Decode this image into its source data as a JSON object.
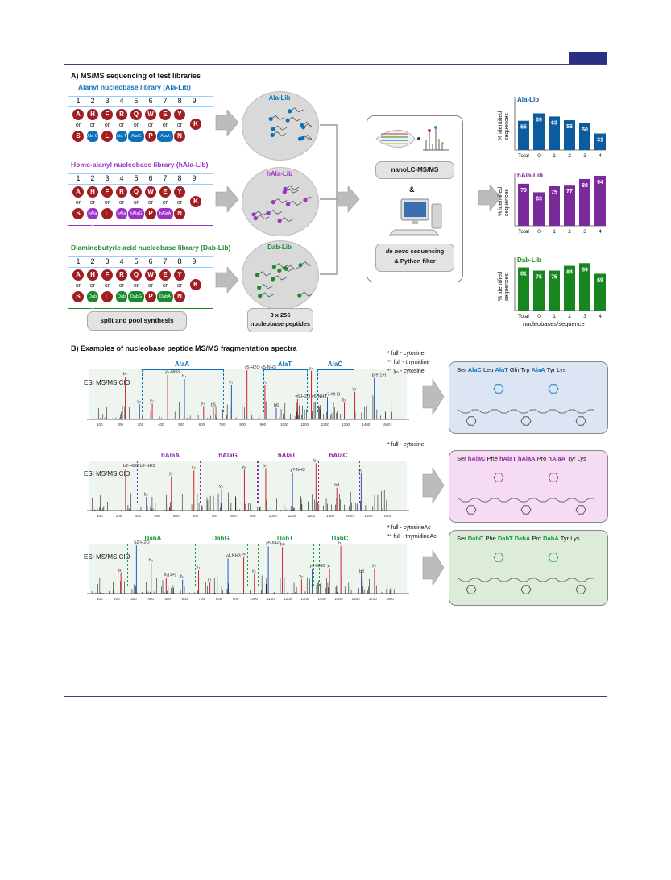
{
  "sectionA": {
    "title": "A) MS/MS sequencing of test libraries"
  },
  "sectionB": {
    "title": "B) Examples of nucleobase peptide MS/MS fragmentation spectra"
  },
  "libs": [
    {
      "title": "Alanyl nucleobase library (Ala-Lib)",
      "circle_label": "Ala-Lib",
      "color": "#0b72b9",
      "nb": [
        "Ala C",
        "Ala T",
        "AlaG",
        "AlaA"
      ]
    },
    {
      "title": "Homo-alanyl nucleobase library (hAla-Lib)",
      "circle_label": "hAla-Lib",
      "color": "#9a33c4",
      "nb": [
        "hAla C",
        "hAla T",
        "hAlaG",
        "hAlaA"
      ]
    },
    {
      "title": "Diaminobutyric acid nucleobase library (Dab-Lib)",
      "circle_label": "Dab-Lib",
      "color": "#1b8a2e",
      "nb": [
        "Dab C",
        "Dab T",
        "DabG",
        "DabA"
      ]
    }
  ],
  "positions": [
    "1",
    "2",
    "3",
    "4",
    "5",
    "6",
    "7",
    "8",
    "9"
  ],
  "or_label": "or",
  "row1_aa": [
    "A",
    "H",
    "F",
    "R",
    "Q",
    "W",
    "E",
    "Y",
    "K"
  ],
  "row2_aa": [
    "S",
    "L",
    "P",
    "N"
  ],
  "split_pool": "split and pool synthesis",
  "peptides_box": "3 x 256\nnucleobase peptides",
  "nanolc": "nanoLC-MS/MS",
  "amp": "&",
  "denovo": {
    "em": "de novo",
    "rest": " sequencing",
    "line2": "& Python filter"
  },
  "bar_ylabel": [
    "% identified",
    "sequences"
  ],
  "bar_xlabel": "nucleobases/sequence",
  "chart_data": [
    {
      "type": "bar",
      "title": "Ala-Lib",
      "categories": [
        "Total",
        "0",
        "1",
        "2",
        "3",
        "4"
      ],
      "values": [
        55,
        69,
        63,
        56,
        50,
        31
      ],
      "color": "#0c5b9e"
    },
    {
      "type": "bar",
      "title": "hAla-Lib",
      "categories": [
        "Total",
        "0",
        "1",
        "2",
        "3",
        "4"
      ],
      "values": [
        79,
        63,
        75,
        77,
        88,
        94
      ],
      "color": "#7b2a99"
    },
    {
      "type": "bar",
      "title": "Dab-Lib",
      "categories": [
        "Total",
        "0",
        "1",
        "2",
        "3",
        "4"
      ],
      "values": [
        81,
        75,
        75,
        84,
        89,
        69
      ],
      "color": "#17861f"
    }
  ],
  "spectra": [
    {
      "label": "ESI MS/MS CID",
      "brackets": [
        "AlaA",
        "AlaT",
        "AlaC"
      ],
      "notes": [
        "* full - cytosine",
        "** full - thymidine",
        "*° y₆ - cytosine"
      ],
      "peaks": [
        "b₂",
        "y₂",
        "y₃",
        "y₃-NH3",
        "b₄",
        "y₄",
        "b5",
        "y₅",
        "y5-H2O\ny5-NH3",
        "y₆",
        "b6",
        "y6-H2O\ny6-NH3",
        "y₇",
        "y7-NH3",
        "b₇",
        "y₈",
        "pre(1+)"
      ],
      "ticks": [
        "100",
        "200",
        "300",
        "400",
        "500",
        "600",
        "700",
        "800",
        "900",
        "1000",
        "1100",
        "1200",
        "1300",
        "1400",
        "1500"
      ],
      "seq": [
        [
          "Ser ",
          ""
        ],
        [
          "AlaC",
          "c"
        ],
        [
          " Leu ",
          ""
        ],
        [
          "AlaT",
          "c"
        ],
        [
          " Gln Trp ",
          ""
        ],
        [
          "AlaA",
          "c"
        ],
        [
          " Tyr Lys",
          ""
        ]
      ]
    },
    {
      "label": "ESI MS/MS CID",
      "brackets": [
        "hAlaA",
        "hAlaG",
        "hAlaT",
        "hAlaC"
      ],
      "notes": [
        "* full - cytosine"
      ],
      "peaks": [
        "b2-H2O\nb2-NH3",
        "b₂",
        "y₂",
        "y₄",
        "y₅",
        "y₆",
        "y₇",
        "y7-NH3",
        "b₇",
        "b8",
        "y₈"
      ],
      "ticks": [
        "100",
        "200",
        "300",
        "400",
        "500",
        "600",
        "700",
        "800",
        "900",
        "1000",
        "1100",
        "1200",
        "1300",
        "1400",
        "1500",
        "1600"
      ],
      "seq": [
        [
          "Ser ",
          ""
        ],
        [
          "hAlaC",
          "c"
        ],
        [
          " Phe ",
          ""
        ],
        [
          "hAlaT",
          "c"
        ],
        [
          " ",
          ""
        ],
        [
          "hAlaA",
          "c"
        ],
        [
          " Pro ",
          ""
        ],
        [
          "hAlaA",
          "c"
        ],
        [
          " Tyr Lys",
          ""
        ]
      ]
    },
    {
      "label": "ESI MS/MS CID",
      "brackets": [
        "DabA",
        "DabG",
        "DabT",
        "DabC"
      ],
      "notes": [
        "* full - cytosineAc",
        "** full - thymidineAc"
      ],
      "peaks": [
        "b₂",
        "b2-H2O",
        "b₃",
        "b₃(1+)",
        "b₄",
        "y₃",
        "y₄",
        "y4-NH3",
        "b₅",
        "y₅",
        "y5-NH3",
        "b6",
        "y₆",
        "y6-NH3",
        "y₇",
        "b₇",
        "b8",
        "y₈"
      ],
      "ticks": [
        "100",
        "200",
        "300",
        "400",
        "500",
        "600",
        "700",
        "800",
        "900",
        "1000",
        "1100",
        "1200",
        "1300",
        "1400",
        "1500",
        "1600",
        "1700",
        "1800"
      ],
      "seq": [
        [
          "Ser ",
          ""
        ],
        [
          "DabC",
          "c"
        ],
        [
          " Phe ",
          ""
        ],
        [
          "DabT",
          "c"
        ],
        [
          " ",
          ""
        ],
        [
          "DabA",
          "c"
        ],
        [
          " Pro ",
          ""
        ],
        [
          "DabA",
          "c"
        ],
        [
          " Tyr Lys",
          ""
        ]
      ]
    }
  ]
}
